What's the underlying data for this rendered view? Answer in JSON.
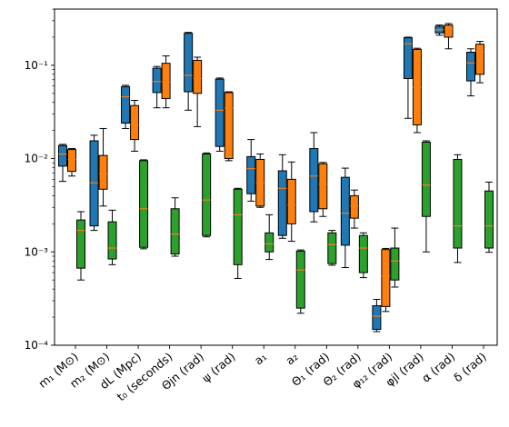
{
  "chart_data": {
    "type": "boxplot",
    "yscale": "log",
    "ylim": [
      0.0001,
      0.4
    ],
    "y_ticks": [
      {
        "value": 0.0001,
        "label": "10⁻⁴"
      },
      {
        "value": 0.001,
        "label": "10⁻³"
      },
      {
        "value": 0.01,
        "label": "10⁻²"
      },
      {
        "value": 0.1,
        "label": "10⁻¹"
      }
    ],
    "categories": [
      "m₁ (M⊙)",
      "m₂ (M⊙)",
      "dL (Mpc)",
      "t₀ (seconds)",
      "Θjn (rad)",
      "ψ (rad)",
      "a₁",
      "a₂",
      "Θ₁ (rad)",
      "Θ₂ (rad)",
      "φ₁₂ (rad)",
      "φjl (rad)",
      "α (rad)",
      "δ (rad)"
    ],
    "series": [
      {
        "color": "#1f77b4",
        "boxes": [
          {
            "category": 0,
            "whislo": 0.0057,
            "q1": 0.0083,
            "med": 0.0112,
            "q3": 0.0138,
            "whishi": 0.0142
          },
          {
            "category": 1,
            "whislo": 0.0017,
            "q1": 0.0019,
            "med": 0.0055,
            "q3": 0.0155,
            "whishi": 0.0178
          },
          {
            "category": 2,
            "whislo": 0.021,
            "q1": 0.024,
            "med": 0.046,
            "q3": 0.059,
            "whishi": 0.061
          },
          {
            "category": 3,
            "whislo": 0.035,
            "q1": 0.051,
            "med": 0.067,
            "q3": 0.093,
            "whishi": 0.097
          },
          {
            "category": 4,
            "whislo": 0.033,
            "q1": 0.052,
            "med": 0.078,
            "q3": 0.22,
            "whishi": 0.225
          },
          {
            "category": 5,
            "whislo": 0.012,
            "q1": 0.0135,
            "med": 0.033,
            "q3": 0.071,
            "whishi": 0.073
          },
          {
            "category": 6,
            "whislo": 0.0035,
            "q1": 0.0042,
            "med": 0.0078,
            "q3": 0.0105,
            "whishi": 0.016
          },
          {
            "category": 7,
            "whislo": 0.0014,
            "q1": 0.0015,
            "med": 0.0048,
            "q3": 0.0074,
            "whishi": 0.011
          },
          {
            "category": 8,
            "whislo": 0.0021,
            "q1": 0.0027,
            "med": 0.0065,
            "q3": 0.0128,
            "whishi": 0.019
          },
          {
            "category": 9,
            "whislo": 0.00068,
            "q1": 0.00118,
            "med": 0.0026,
            "q3": 0.0063,
            "whishi": 0.0079
          },
          {
            "category": 10,
            "whislo": 0.00014,
            "q1": 0.000148,
            "med": 0.000205,
            "q3": 0.000265,
            "whishi": 0.00031
          },
          {
            "category": 11,
            "whislo": 0.027,
            "q1": 0.072,
            "med": 0.17,
            "q3": 0.197,
            "whishi": 0.2
          },
          {
            "category": 12,
            "whislo": 0.21,
            "q1": 0.222,
            "med": 0.24,
            "q3": 0.262,
            "whishi": 0.27
          },
          {
            "category": 13,
            "whislo": 0.047,
            "q1": 0.068,
            "med": 0.106,
            "q3": 0.138,
            "whishi": 0.15
          }
        ]
      },
      {
        "color": "#ff7f0e",
        "boxes": [
          {
            "category": 0,
            "whislo": 0.0065,
            "q1": 0.0073,
            "med": 0.0098,
            "q3": 0.0125,
            "whishi": 0.0128
          },
          {
            "category": 1,
            "whislo": 0.0031,
            "q1": 0.0047,
            "med": 0.0069,
            "q3": 0.0108,
            "whishi": 0.021
          },
          {
            "category": 2,
            "whislo": 0.012,
            "q1": 0.016,
            "med": 0.023,
            "q3": 0.037,
            "whishi": 0.042
          },
          {
            "category": 3,
            "whislo": 0.035,
            "q1": 0.044,
            "med": 0.066,
            "q3": 0.105,
            "whishi": 0.126
          },
          {
            "category": 4,
            "whislo": 0.022,
            "q1": 0.05,
            "med": 0.072,
            "q3": 0.113,
            "whishi": 0.122
          },
          {
            "category": 5,
            "whislo": 0.0095,
            "q1": 0.01,
            "med": 0.035,
            "q3": 0.051,
            "whishi": 0.052
          },
          {
            "category": 6,
            "whislo": 0.003,
            "q1": 0.0031,
            "med": 0.0055,
            "q3": 0.0098,
            "whishi": 0.0112
          },
          {
            "category": 7,
            "whislo": 0.0013,
            "q1": 0.002,
            "med": 0.0032,
            "q3": 0.006,
            "whishi": 0.0092
          },
          {
            "category": 8,
            "whislo": 0.0024,
            "q1": 0.0029,
            "med": 0.0053,
            "q3": 0.0088,
            "whishi": 0.0091
          },
          {
            "category": 9,
            "whislo": 0.0018,
            "q1": 0.0023,
            "med": 0.0031,
            "q3": 0.004,
            "whishi": 0.0046
          },
          {
            "category": 10,
            "whislo": 0.00023,
            "q1": 0.00026,
            "med": 0.00055,
            "q3": 0.00106,
            "whishi": 0.00109
          },
          {
            "category": 11,
            "whislo": 0.019,
            "q1": 0.023,
            "med": 0.058,
            "q3": 0.148,
            "whishi": 0.152
          },
          {
            "category": 12,
            "whislo": 0.15,
            "q1": 0.2,
            "med": 0.245,
            "q3": 0.27,
            "whishi": 0.28
          },
          {
            "category": 13,
            "whislo": 0.065,
            "q1": 0.08,
            "med": 0.14,
            "q3": 0.168,
            "whishi": 0.18
          }
        ]
      },
      {
        "color": "#2ca02c",
        "boxes": [
          {
            "category": 0,
            "whislo": 0.0005,
            "q1": 0.00067,
            "med": 0.0017,
            "q3": 0.0022,
            "whishi": 0.0027
          },
          {
            "category": 1,
            "whislo": 0.00073,
            "q1": 0.00084,
            "med": 0.0011,
            "q3": 0.0021,
            "whishi": 0.0028
          },
          {
            "category": 2,
            "whislo": 0.00108,
            "q1": 0.00112,
            "med": 0.0029,
            "q3": 0.0095,
            "whishi": 0.0097
          },
          {
            "category": 3,
            "whislo": 0.0009,
            "q1": 0.00095,
            "med": 0.00155,
            "q3": 0.0029,
            "whishi": 0.0038
          },
          {
            "category": 4,
            "whislo": 0.00145,
            "q1": 0.0015,
            "med": 0.0036,
            "q3": 0.0112,
            "whishi": 0.0115
          },
          {
            "category": 5,
            "whislo": 0.00052,
            "q1": 0.00073,
            "med": 0.0025,
            "q3": 0.0047,
            "whishi": 0.0048
          },
          {
            "category": 6,
            "whislo": 0.00083,
            "q1": 0.001,
            "med": 0.00122,
            "q3": 0.0016,
            "whishi": 0.0025
          },
          {
            "category": 7,
            "whislo": 0.00022,
            "q1": 0.00025,
            "med": 0.00064,
            "q3": 0.00102,
            "whishi": 0.00105
          },
          {
            "category": 8,
            "whislo": 0.00072,
            "q1": 0.00075,
            "med": 0.0012,
            "q3": 0.0016,
            "whishi": 0.0017
          },
          {
            "category": 9,
            "whislo": 0.00053,
            "q1": 0.0006,
            "med": 0.0011,
            "q3": 0.0015,
            "whishi": 0.0016
          },
          {
            "category": 10,
            "whislo": 0.00042,
            "q1": 0.0005,
            "med": 0.0008,
            "q3": 0.0011,
            "whishi": 0.0018
          },
          {
            "category": 11,
            "whislo": 0.001,
            "q1": 0.0024,
            "med": 0.0052,
            "q3": 0.015,
            "whishi": 0.0155
          },
          {
            "category": 12,
            "whislo": 0.00077,
            "q1": 0.0011,
            "med": 0.0019,
            "q3": 0.0098,
            "whishi": 0.011
          },
          {
            "category": 13,
            "whislo": 0.00099,
            "q1": 0.0011,
            "med": 0.0019,
            "q3": 0.0045,
            "whishi": 0.0056
          }
        ]
      }
    ],
    "median_color": "#ff7f0e",
    "grid": false,
    "legend": false,
    "title": "",
    "xlabel": "",
    "ylabel": ""
  }
}
